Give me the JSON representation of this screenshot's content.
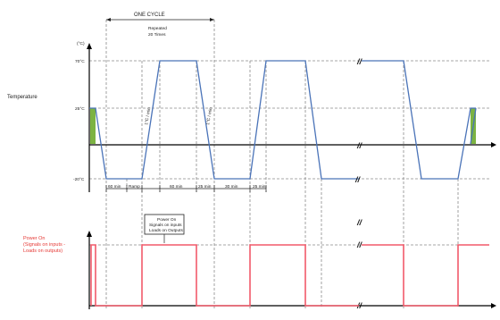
{
  "temperature_panel": {
    "ylabel": "Temperature",
    "unit": "(°C)",
    "ticks": {
      "hot": "70°C",
      "ambient": "25°C",
      "cold": "-20°C"
    }
  },
  "cycle": {
    "label": "ONE CYCLE",
    "repeat_line1": "Repeated",
    "repeat_line2": "20 Times"
  },
  "ramps": {
    "down": "1°C / min",
    "up": "1°C / min"
  },
  "durations": [
    "60 min",
    "Ramp",
    "60 min",
    "25 min",
    "30 min",
    "25 min"
  ],
  "power_panel": {
    "label_line1": "Power On",
    "label_line2": "(Signals on inputs -",
    "label_line3": "Loads on outputs)",
    "callout_line1": "Power On",
    "callout_line2": "Signals on inputs",
    "callout_line3": "Loads on Outputs"
  },
  "break_mark": "//",
  "colors": {
    "temperature_line": "#4a73b8",
    "power_line": "#f25a6a",
    "ambient_marker": "#7cb342",
    "power_label": "#e53935"
  }
}
